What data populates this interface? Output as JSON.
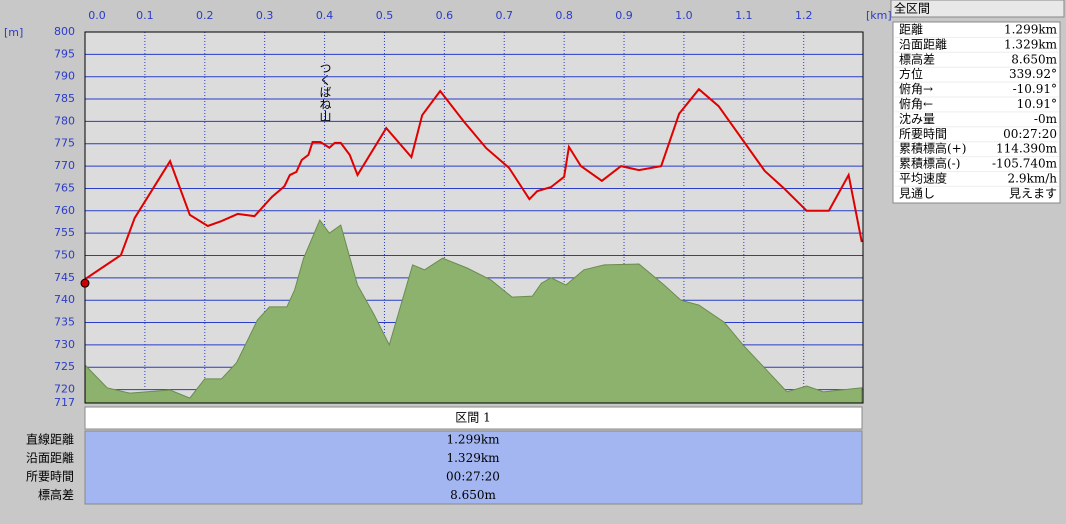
{
  "chart_data": {
    "type": "line",
    "x_unit": "[km]",
    "y_unit": "[m]",
    "annotation": "つくばね山",
    "xlim": [
      0,
      1.299
    ],
    "xticks": [
      {
        "value": 0,
        "label": "0.0"
      },
      0.1,
      0.2,
      0.3,
      0.4,
      0.5,
      0.6,
      0.7,
      0.8,
      0.9,
      {
        "value": 1,
        "label": "1.0"
      },
      1.1,
      1.2
    ],
    "ylim": [
      717,
      800
    ],
    "yticks": [
      717,
      720,
      725,
      730,
      735,
      740,
      745,
      750,
      755,
      760,
      765,
      770,
      775,
      780,
      785,
      790,
      795,
      800
    ],
    "grid": true,
    "series": [
      {
        "color": "#e00000",
        "x": [
          0,
          0.03,
          0.06,
          0.083,
          0.142,
          0.175,
          0.205,
          0.228,
          0.255,
          0.283,
          0.312,
          0.333,
          0.342,
          0.353,
          0.362,
          0.373,
          0.38,
          0.393,
          0.408,
          0.417,
          0.427,
          0.442,
          0.455,
          0.503,
          0.545,
          0.563,
          0.593,
          0.633,
          0.67,
          0.708,
          0.742,
          0.755,
          0.778,
          0.8,
          0.808,
          0.828,
          0.863,
          0.895,
          0.925,
          0.962,
          0.992,
          1.025,
          1.058,
          1.135,
          1.168,
          1.205,
          1.242,
          1.275,
          1.297
        ],
        "values": [
          744.7,
          747.4,
          750.1,
          758.4,
          771.1,
          759.1,
          756.6,
          757.7,
          759.3,
          758.8,
          763.1,
          765.5,
          768.0,
          768.7,
          771.4,
          772.5,
          775.4,
          775.4,
          774.1,
          775.2,
          775.2,
          772.5,
          768.0,
          778.5,
          772.0,
          781.4,
          786.8,
          779.9,
          774.0,
          769.6,
          762.6,
          764.4,
          765.3,
          767.6,
          774.3,
          770.0,
          766.7,
          770.0,
          769.1,
          770.0,
          781.7,
          787.2,
          783.4,
          768.9,
          764.9,
          760.0,
          760.0,
          768.0,
          753.0
        ]
      },
      {
        "color": "#8db26d",
        "fill": true,
        "x": [
          0,
          0.037,
          0.075,
          0.142,
          0.175,
          0.2,
          0.228,
          0.253,
          0.288,
          0.308,
          0.337,
          0.35,
          0.365,
          0.392,
          0.408,
          0.427,
          0.455,
          0.483,
          0.508,
          0.547,
          0.567,
          0.597,
          0.638,
          0.678,
          0.713,
          0.747,
          0.762,
          0.778,
          0.803,
          0.833,
          0.867,
          0.925,
          0.967,
          0.995,
          1.025,
          1.067,
          1.1,
          1.133,
          1.172,
          1.205,
          1.233,
          1.297
        ],
        "values": [
          725.5,
          720.4,
          719.2,
          719.9,
          718.1,
          722.4,
          722.4,
          726.0,
          735.6,
          738.5,
          738.5,
          742.3,
          749.4,
          757.9,
          755.0,
          756.8,
          743.4,
          736.7,
          730.0,
          747.9,
          746.8,
          749.4,
          747.2,
          744.5,
          740.7,
          740.9,
          743.8,
          745.0,
          743.4,
          746.8,
          747.9,
          748.1,
          743.4,
          740.0,
          738.9,
          735.1,
          729.8,
          725.1,
          719.5,
          720.8,
          719.5,
          720.4
        ]
      }
    ]
  },
  "section_table": {
    "header": "区間 1",
    "rows": [
      [
        "直線距離",
        "1.299km"
      ],
      [
        "沿面距離",
        "1.329km"
      ],
      [
        "所要時間",
        "00:27:20"
      ],
      [
        "標高差",
        "8.650m"
      ]
    ]
  },
  "summary_panel": {
    "title": "全区間",
    "rows": [
      [
        "距離",
        "1.299km"
      ],
      [
        "沿面距離",
        "1.329km"
      ],
      [
        "標高差",
        "8.650m"
      ],
      [
        "方位",
        "339.92°"
      ],
      [
        "俯角→",
        "-10.91°"
      ],
      [
        "俯角←",
        "10.91°"
      ],
      [
        "沈み量",
        "-0m"
      ],
      [
        "所要時間",
        "00:27:20"
      ],
      [
        "累積標高(+)",
        "114.390m"
      ],
      [
        "累積標高(-)",
        "-105.740m"
      ],
      [
        "平均速度",
        "2.9km/h"
      ],
      [
        "見通し",
        "見えます"
      ]
    ]
  }
}
